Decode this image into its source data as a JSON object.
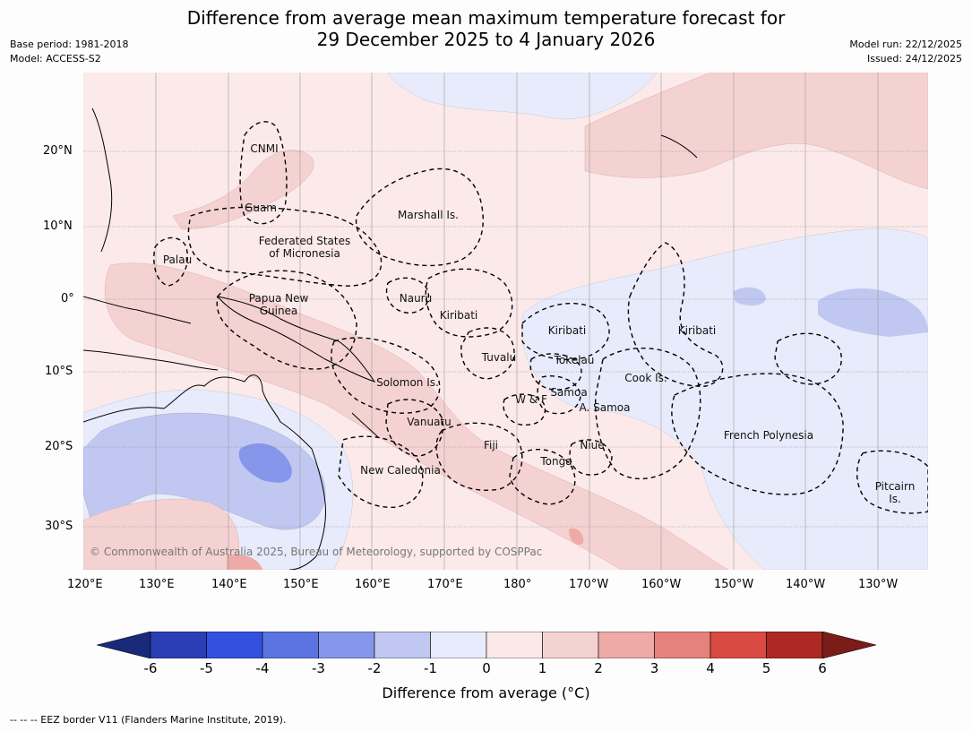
{
  "title_line1": "Difference from average mean maximum temperature forecast for",
  "title_line2": "29 December 2025 to 4 January 2026",
  "base_period": "Base period: 1981-2018",
  "model": "Model: ACCESS-S2",
  "model_run": "Model run: 22/12/2025",
  "issued": "Issued: 24/12/2025",
  "lat_ticks": [
    "20°N",
    "10°N",
    "0°",
    "10°S",
    "20°S",
    "30°S"
  ],
  "lon_ticks": [
    "120°E",
    "130°E",
    "140°E",
    "150°E",
    "160°E",
    "170°E",
    "180°",
    "170°W",
    "160°W",
    "150°W",
    "140°W",
    "130°W"
  ],
  "region_labels": {
    "cnmi": "CNMI",
    "guam": "Guam",
    "marshall": "Marshall Is.",
    "fsm1": "Federated States",
    "fsm2": "of Micronesia",
    "palau": "Palau",
    "png1": "Papua New",
    "png2": "Guinea",
    "nauru": "Nauru",
    "kiribati_w": "Kiribati",
    "kiribati_c": "Kiribati",
    "kiribati_e": "Kiribati",
    "tuvalu": "Tuvalu",
    "tokelau": "Tokelau",
    "cook": "Cook Is.",
    "solomon": "Solomon Is.",
    "samoa": "Samoa",
    "wf": "W & F",
    "asamoa": "A. Samoa",
    "vanuatu": "Vanuatu",
    "fiji": "Fiji",
    "niue": "Niue",
    "tonga": "Tonga",
    "newcal": "New Caledonia",
    "frpoly": "French Polynesia",
    "pitcairn1": "Pitcairn",
    "pitcairn2": "Is."
  },
  "copyright": "© Commonwealth of Australia 2025, Bureau of Meteorology, supported by COSPPac",
  "colorbar": {
    "ticks": [
      "-6",
      "-5",
      "-4",
      "-3",
      "-2",
      "-1",
      "0",
      "1",
      "2",
      "3",
      "4",
      "5",
      "6"
    ],
    "colors": [
      "#1a2a7a",
      "#2a3fb5",
      "#3350e0",
      "#5a73e0",
      "#8696ea",
      "#c0c8f2",
      "#e8ebfb",
      "#fbe9e9",
      "#f5d2d2",
      "#edaaa7",
      "#e5827c",
      "#d94a42",
      "#ad2923",
      "#7a1c18"
    ],
    "label": "Difference from average (°C)"
  },
  "footer": "-- -- -- EEZ border V11 (Flanders Marine Institute, 2019)."
}
